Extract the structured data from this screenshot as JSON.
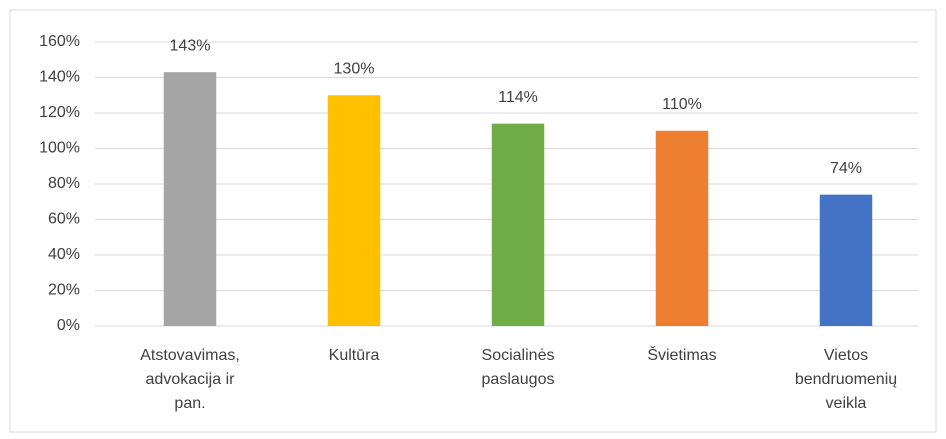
{
  "chart_data": {
    "type": "bar",
    "categories": [
      "Atstovavimas, advokacija ir pan.",
      "Kultūra",
      "Socialinės paslaugos",
      "Švietimas",
      "Vietos bendruomenių veikla"
    ],
    "values": [
      143,
      130,
      114,
      110,
      74
    ],
    "value_labels": [
      "143%",
      "130%",
      "114%",
      "110%",
      "74%"
    ],
    "colors": [
      "#a5a5a5",
      "#ffc000",
      "#70ad47",
      "#ed7d31",
      "#4472c4"
    ],
    "ylim": [
      0,
      160
    ],
    "yticks": [
      {
        "value": 0,
        "label": "0%"
      },
      {
        "value": 20,
        "label": "20%"
      },
      {
        "value": 40,
        "label": "40%"
      },
      {
        "value": 60,
        "label": "60%"
      },
      {
        "value": 80,
        "label": "80%"
      },
      {
        "value": 100,
        "label": "100%"
      },
      {
        "value": 120,
        "label": "120%"
      },
      {
        "value": 140,
        "label": "140%"
      },
      {
        "value": 160,
        "label": "160%"
      }
    ],
    "grid": true
  }
}
